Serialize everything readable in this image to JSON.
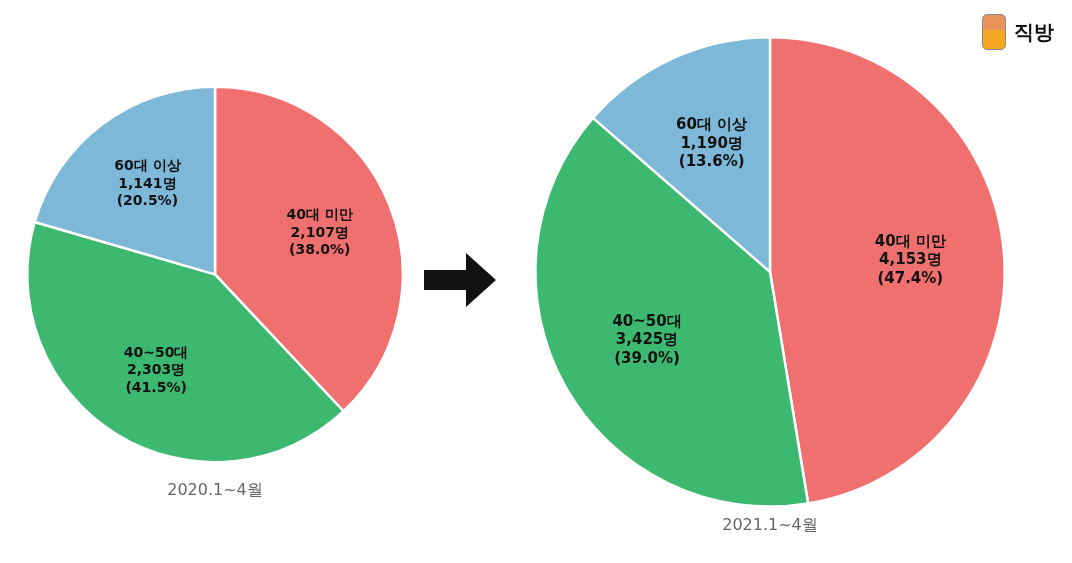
{
  "chart_data": [
    {
      "type": "pie",
      "title": "2020.1~4월",
      "categories": [
        "40대 미만",
        "40~50대",
        "60대 이상"
      ],
      "values": [
        38.0,
        41.5,
        20.5
      ],
      "value_labels": [
        "(38.0%)",
        "(41.5%)",
        "(20.5%)"
      ],
      "counts": [
        2107,
        2303,
        1141
      ],
      "count_labels": [
        "2,107명",
        "2,303명",
        "1,141명"
      ],
      "colors": [
        "#F07070",
        "#3DB870",
        "#7EB8D8"
      ],
      "data_labels": true,
      "legend": false
    },
    {
      "type": "pie",
      "title": "2021.1~4월",
      "categories": [
        "40대 미만",
        "40~50대",
        "60대 이상"
      ],
      "values": [
        47.4,
        39.0,
        13.6
      ],
      "value_labels": [
        "(47.4%)",
        "(39.0%)",
        "(13.6%)"
      ],
      "counts": [
        4153,
        3425,
        1190
      ],
      "count_labels": [
        "4,153명",
        "3,425명",
        "1,190명"
      ],
      "colors": [
        "#F07070",
        "#3DB870",
        "#7EB8D8"
      ],
      "data_labels": true,
      "legend": false,
      "annotations": [
        {
          "text": "직방"
        }
      ]
    }
  ]
}
